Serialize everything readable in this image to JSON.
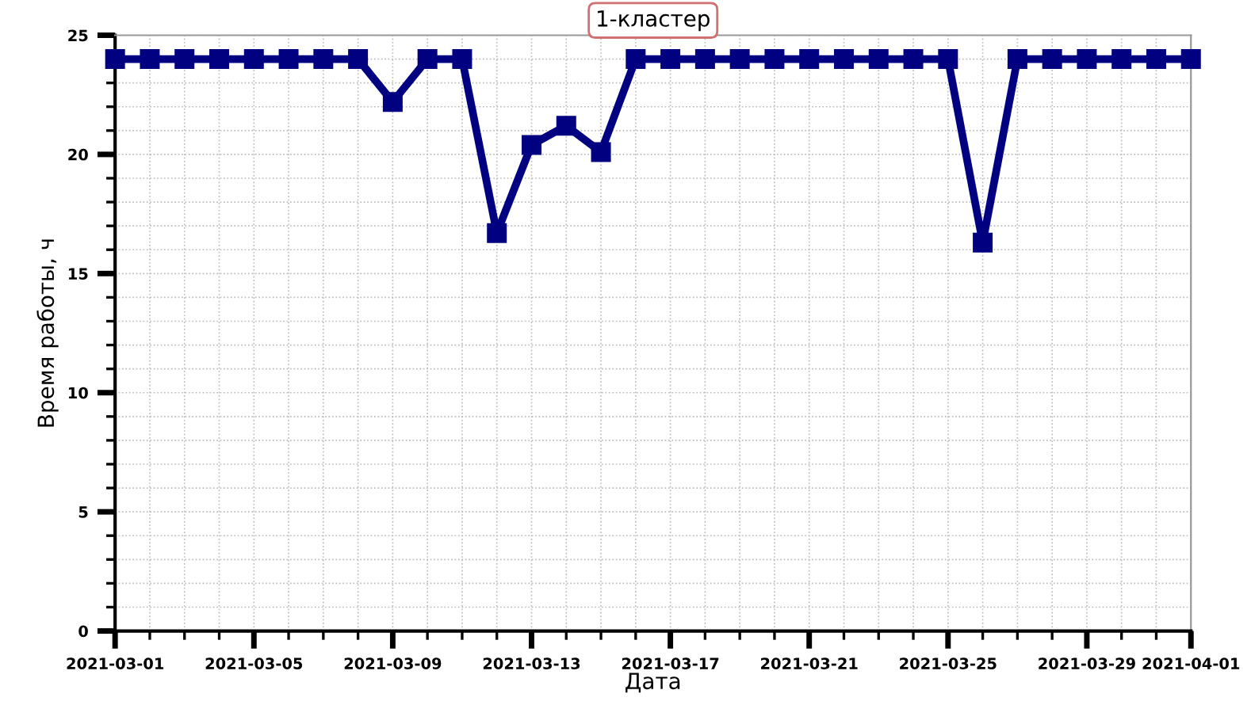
{
  "chart_data": {
    "type": "line",
    "title": "1-кластер",
    "xlabel": "Дата",
    "ylabel": "Время работы, ч",
    "x": [
      "2021-03-01",
      "2021-03-02",
      "2021-03-03",
      "2021-03-04",
      "2021-03-05",
      "2021-03-06",
      "2021-03-07",
      "2021-03-08",
      "2021-03-09",
      "2021-03-10",
      "2021-03-11",
      "2021-03-12",
      "2021-03-13",
      "2021-03-14",
      "2021-03-15",
      "2021-03-16",
      "2021-03-17",
      "2021-03-18",
      "2021-03-19",
      "2021-03-20",
      "2021-03-21",
      "2021-03-22",
      "2021-03-23",
      "2021-03-24",
      "2021-03-25",
      "2021-03-26",
      "2021-03-27",
      "2021-03-28",
      "2021-03-29",
      "2021-03-30",
      "2021-03-31",
      "2021-04-01"
    ],
    "series": [
      {
        "color": "#000080",
        "values": [
          24,
          24,
          24,
          24,
          24,
          24,
          24,
          24,
          22.2,
          24,
          24,
          16.7,
          20.4,
          21.2,
          20.1,
          24,
          24,
          24,
          24,
          24,
          24,
          24,
          24,
          24,
          24,
          16.3,
          24,
          24,
          24,
          24,
          24,
          24
        ]
      }
    ],
    "marker": "square",
    "line_style": "solid",
    "grid": true,
    "xlim": [
      "2021-03-01",
      "2021-04-01"
    ],
    "xticks": [
      "2021-03-01",
      {
        "value": "2021-03-02",
        "label": null
      },
      {
        "value": "2021-03-03",
        "label": null
      },
      {
        "value": "2021-03-04",
        "label": null
      },
      "2021-03-05",
      {
        "value": "2021-03-06",
        "label": null
      },
      {
        "value": "2021-03-07",
        "label": null
      },
      {
        "value": "2021-03-08",
        "label": null
      },
      "2021-03-09",
      {
        "value": "2021-03-10",
        "label": null
      },
      {
        "value": "2021-03-11",
        "label": null
      },
      {
        "value": "2021-03-12",
        "label": null
      },
      "2021-03-13",
      {
        "value": "2021-03-14",
        "label": null
      },
      {
        "value": "2021-03-15",
        "label": null
      },
      {
        "value": "2021-03-16",
        "label": null
      },
      "2021-03-17",
      {
        "value": "2021-03-18",
        "label": null
      },
      {
        "value": "2021-03-19",
        "label": null
      },
      {
        "value": "2021-03-20",
        "label": null
      },
      "2021-03-21",
      {
        "value": "2021-03-22",
        "label": null
      },
      {
        "value": "2021-03-23",
        "label": null
      },
      {
        "value": "2021-03-24",
        "label": null
      },
      "2021-03-25",
      {
        "value": "2021-03-26",
        "label": null
      },
      {
        "value": "2021-03-27",
        "label": null
      },
      {
        "value": "2021-03-28",
        "label": null
      },
      "2021-03-29",
      {
        "value": "2021-03-30",
        "label": null
      },
      {
        "value": "2021-03-31",
        "label": null
      },
      "2021-04-01"
    ],
    "ylim": [
      0,
      25
    ],
    "yticks": [
      0,
      {
        "value": 1,
        "label": null
      },
      {
        "value": 2,
        "label": null
      },
      {
        "value": 3,
        "label": null
      },
      {
        "value": 4,
        "label": null
      },
      5,
      {
        "value": 6,
        "label": null
      },
      {
        "value": 7,
        "label": null
      },
      {
        "value": 8,
        "label": null
      },
      {
        "value": 9,
        "label": null
      },
      10,
      {
        "value": 11,
        "label": null
      },
      {
        "value": 12,
        "label": null
      },
      {
        "value": 13,
        "label": null
      },
      {
        "value": 14,
        "label": null
      },
      15,
      {
        "value": 16,
        "label": null
      },
      {
        "value": 17,
        "label": null
      },
      {
        "value": 18,
        "label": null
      },
      {
        "value": 19,
        "label": null
      },
      20,
      {
        "value": 21,
        "label": null
      },
      {
        "value": 22,
        "label": null
      },
      {
        "value": 23,
        "label": null
      },
      {
        "value": 24,
        "label": null
      },
      25
    ]
  }
}
